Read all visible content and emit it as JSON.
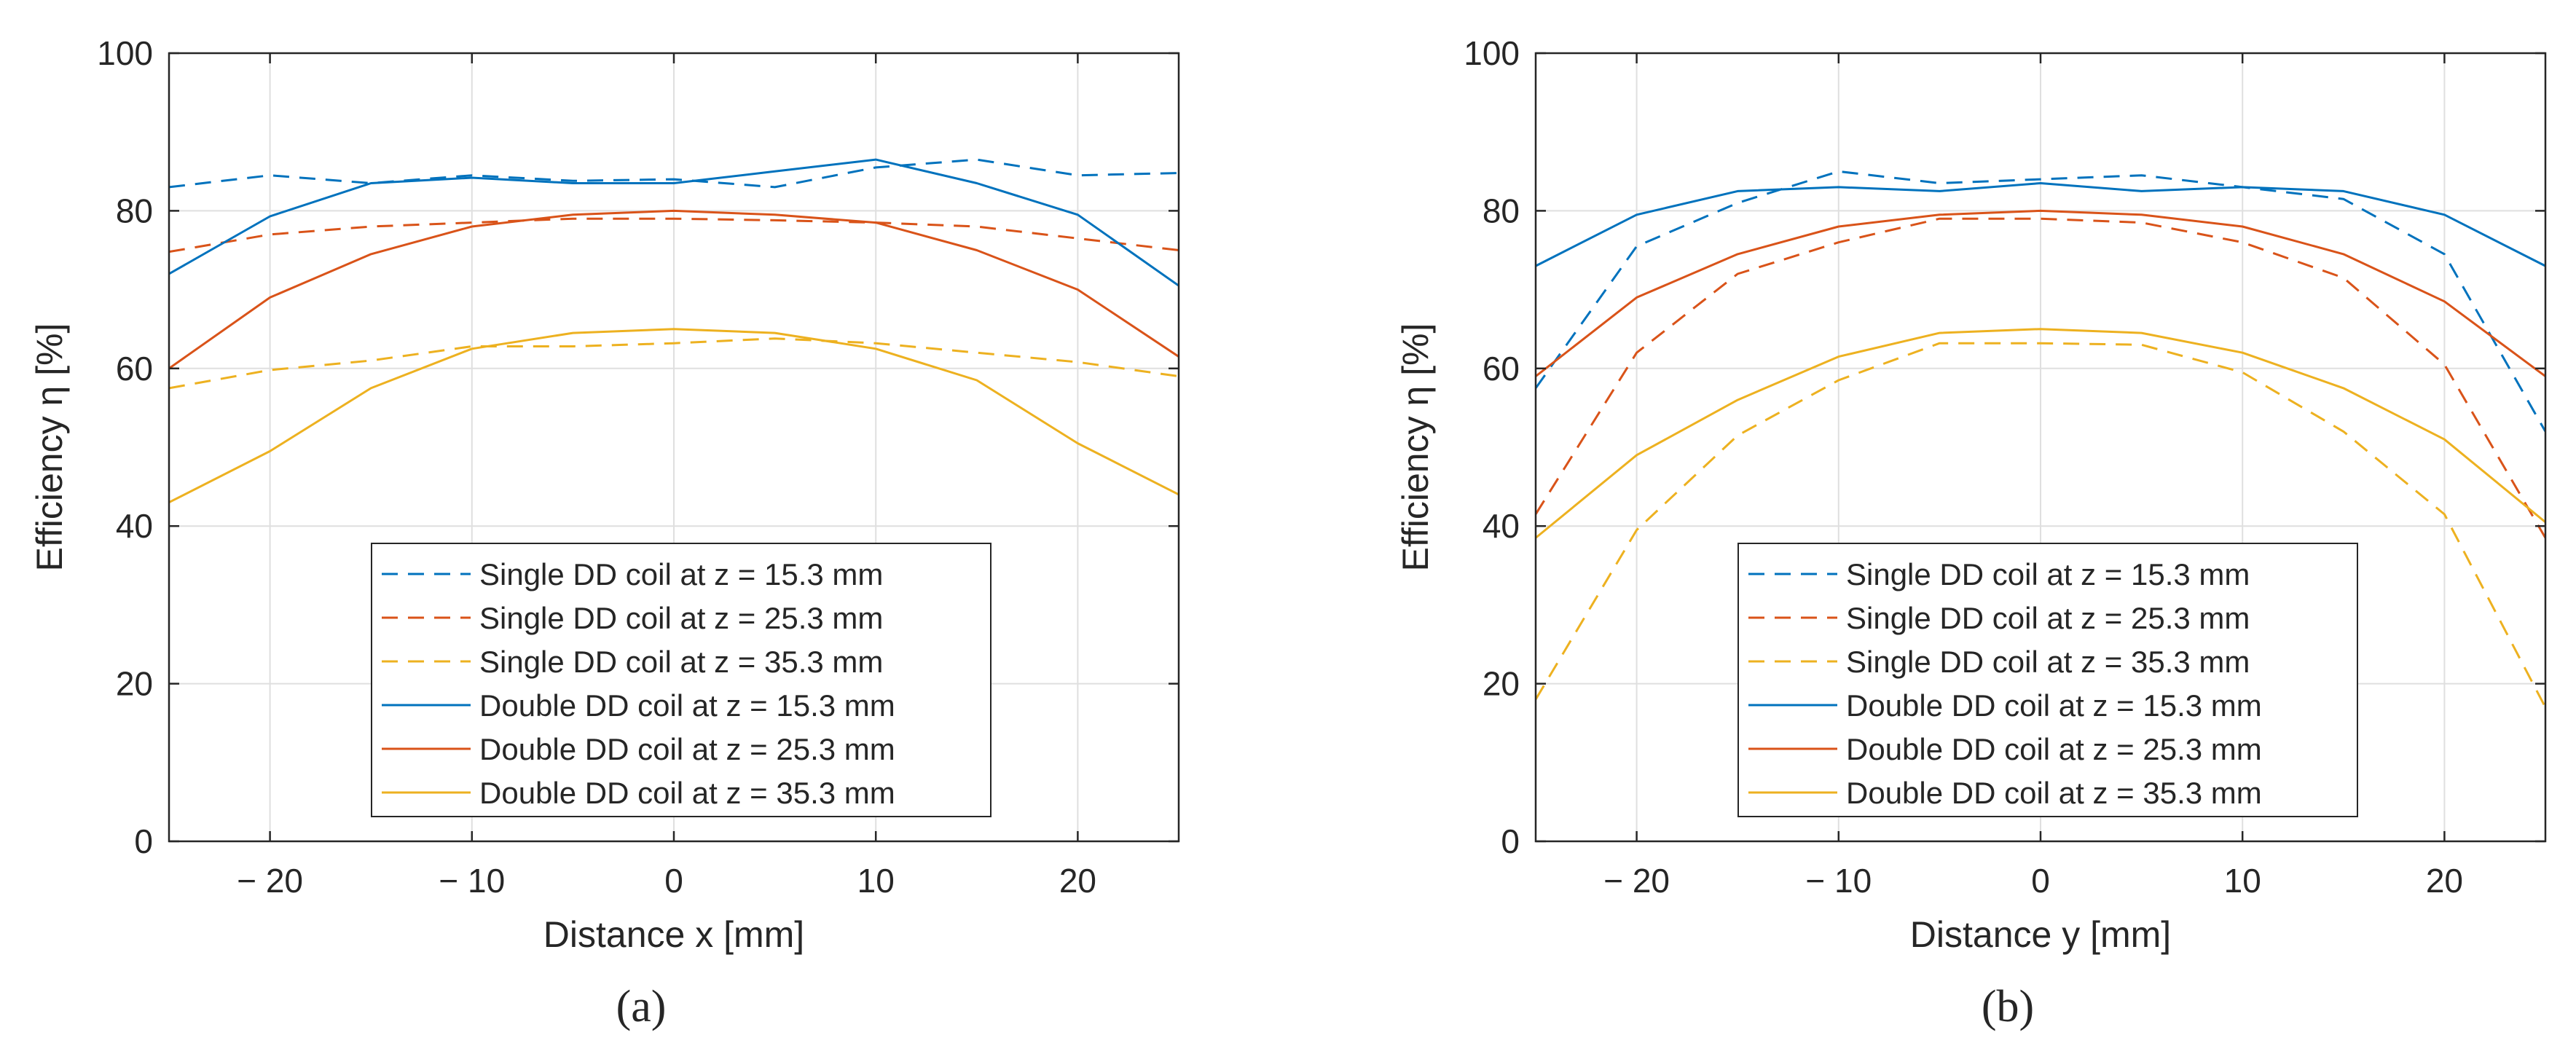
{
  "colors": {
    "blue": "#0072BD",
    "orange": "#D95319",
    "yellow": "#EDB120",
    "axis": "#262626",
    "grid": "#dfdfdf"
  },
  "chart_data": [
    {
      "type": "line",
      "panel_label": "(a)",
      "xlabel": "Distance x [mm]",
      "ylabel": "Efficiency η [%]",
      "xlim": [
        -25,
        25
      ],
      "ylim": [
        0,
        100
      ],
      "xticks": [
        -20,
        -10,
        0,
        10,
        20
      ],
      "xtick_labels": [
        "− 20",
        "− 10",
        "0",
        "10",
        "20"
      ],
      "yticks": [
        0,
        20,
        40,
        60,
        80,
        100
      ],
      "ytick_labels": [
        "0",
        "20",
        "40",
        "60",
        "80",
        "100"
      ],
      "grid": true,
      "legend_position": "bottom-center",
      "x": [
        -25,
        -20,
        -15,
        -10,
        -5,
        0,
        5,
        10,
        15,
        20,
        25
      ],
      "series": [
        {
          "name": "Single DD coil at z = 15.3 mm",
          "color": "blue",
          "style": "dashed",
          "values": [
            83,
            84.5,
            83.5,
            84.5,
            83.8,
            84,
            83,
            85.5,
            86.5,
            84.5,
            84.8
          ]
        },
        {
          "name": "Single DD coil at z = 25.3 mm",
          "color": "orange",
          "style": "dashed",
          "values": [
            74.8,
            77,
            78,
            78.5,
            79,
            79,
            78.8,
            78.5,
            78,
            76.5,
            75
          ]
        },
        {
          "name": "Single DD coil at z = 35.3 mm",
          "color": "yellow",
          "style": "dashed",
          "values": [
            57.5,
            59.8,
            61,
            62.8,
            62.8,
            63.2,
            63.8,
            63.2,
            62,
            60.8,
            59
          ]
        },
        {
          "name": "Double DD coil at z = 15.3 mm",
          "color": "blue",
          "style": "solid",
          "values": [
            72,
            79.3,
            83.5,
            84.2,
            83.5,
            83.5,
            85,
            86.5,
            83.5,
            79.5,
            70.5
          ]
        },
        {
          "name": "Double DD coil at z = 25.3 mm",
          "color": "orange",
          "style": "solid",
          "values": [
            60,
            69,
            74.5,
            78,
            79.5,
            80,
            79.5,
            78.5,
            75,
            70,
            61.5
          ]
        },
        {
          "name": "Double DD coil at z = 35.3 mm",
          "color": "yellow",
          "style": "solid",
          "values": [
            43,
            49.5,
            57.5,
            62.5,
            64.5,
            65,
            64.5,
            62.5,
            58.5,
            50.5,
            44
          ]
        }
      ]
    },
    {
      "type": "line",
      "panel_label": "(b)",
      "xlabel": "Distance y [mm]",
      "ylabel": "Efficiency η [%]",
      "xlim": [
        -25,
        25
      ],
      "ylim": [
        0,
        100
      ],
      "xticks": [
        -20,
        -10,
        0,
        10,
        20
      ],
      "xtick_labels": [
        "− 20",
        "− 10",
        "0",
        "10",
        "20"
      ],
      "yticks": [
        0,
        20,
        40,
        60,
        80,
        100
      ],
      "ytick_labels": [
        "0",
        "20",
        "40",
        "60",
        "80",
        "100"
      ],
      "grid": true,
      "legend_position": "bottom-center",
      "x": [
        -25,
        -20,
        -15,
        -10,
        -5,
        0,
        5,
        10,
        15,
        20,
        25
      ],
      "series": [
        {
          "name": "Single DD coil at z = 15.3 mm",
          "color": "blue",
          "style": "dashed",
          "values": [
            57.5,
            75.5,
            81,
            85,
            83.5,
            84,
            84.5,
            83,
            81.5,
            74.5,
            52
          ]
        },
        {
          "name": "Single DD coil at z = 25.3 mm",
          "color": "orange",
          "style": "dashed",
          "values": [
            41.5,
            62,
            72,
            76,
            79,
            79,
            78.5,
            76,
            71.5,
            60.5,
            38.5
          ]
        },
        {
          "name": "Single DD coil at z = 35.3 mm",
          "color": "yellow",
          "style": "dashed",
          "values": [
            18,
            39.5,
            51.5,
            58.5,
            63.2,
            63.2,
            63,
            59.5,
            52,
            41.5,
            17
          ]
        },
        {
          "name": "Double DD coil at z = 15.3 mm",
          "color": "blue",
          "style": "solid",
          "values": [
            73,
            79.5,
            82.5,
            83,
            82.5,
            83.5,
            82.5,
            83,
            82.5,
            79.5,
            73
          ]
        },
        {
          "name": "Double DD coil at z = 25.3 mm",
          "color": "orange",
          "style": "solid",
          "values": [
            59,
            69,
            74.5,
            78,
            79.5,
            80,
            79.5,
            78,
            74.5,
            68.5,
            59
          ]
        },
        {
          "name": "Double DD coil at z = 35.3 mm",
          "color": "yellow",
          "style": "solid",
          "values": [
            38.5,
            49,
            56,
            61.5,
            64.5,
            65,
            64.5,
            62,
            57.5,
            51,
            40.5
          ]
        }
      ]
    }
  ]
}
